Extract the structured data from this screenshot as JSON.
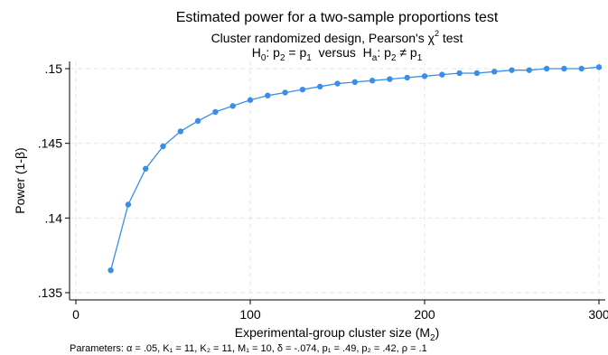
{
  "chart_data": {
    "type": "line",
    "title": "Estimated power for a two-sample proportions test",
    "subtitle": {
      "line1": {
        "text": "Cluster randomized design, Pearson's χ",
        "sup": "2",
        "tail": " test"
      },
      "line2": {
        "segments": [
          {
            "t": "H"
          },
          {
            "t": "0",
            "sub": true
          },
          {
            "t": ": p"
          },
          {
            "t": "2",
            "sub": true
          },
          {
            "t": " = p"
          },
          {
            "t": "1",
            "sub": true
          },
          {
            "t": "  versus  H"
          },
          {
            "t": "a",
            "sub": true
          },
          {
            "t": ": p"
          },
          {
            "t": "2",
            "sub": true
          },
          {
            "t": " ≠ p"
          },
          {
            "t": "1",
            "sub": true
          }
        ]
      }
    },
    "ylabel": "Power (1-β)",
    "xlabel": {
      "text": "Experimental-group cluster size (M",
      "sub": "2",
      "tail": ")"
    },
    "xlim": [
      0,
      300
    ],
    "ylim": [
      0.135,
      0.15
    ],
    "xticks": [
      0,
      100,
      200,
      300
    ],
    "xtick_labels": [
      "0",
      "100",
      "200",
      "300"
    ],
    "yticks": [
      0.135,
      0.14,
      0.145,
      0.15
    ],
    "ytick_labels": [
      ".135",
      ".14",
      ".145",
      ".15"
    ],
    "grid": true,
    "series": [
      {
        "color": "#3a8ee6",
        "x": [
          20,
          30,
          40,
          50,
          60,
          70,
          80,
          90,
          100,
          110,
          120,
          130,
          140,
          150,
          160,
          170,
          180,
          190,
          200,
          210,
          220,
          230,
          240,
          250,
          260,
          270,
          280,
          290,
          300
        ],
        "y": [
          0.1365,
          0.1409,
          0.1433,
          0.1448,
          0.1458,
          0.1465,
          0.1471,
          0.1475,
          0.1479,
          0.1482,
          0.1484,
          0.1486,
          0.1488,
          0.149,
          0.1491,
          0.1492,
          0.1493,
          0.1494,
          0.1495,
          0.1496,
          0.1497,
          0.1497,
          0.1498,
          0.1499,
          0.1499,
          0.15,
          0.15,
          0.15,
          0.1501
        ]
      }
    ],
    "note": "Parameters: α = .05, K₁ = 11, K₂ = 11, M₁ = 10, δ = -.074, p₁ = .49, p₂ = .42, ρ = .1"
  }
}
